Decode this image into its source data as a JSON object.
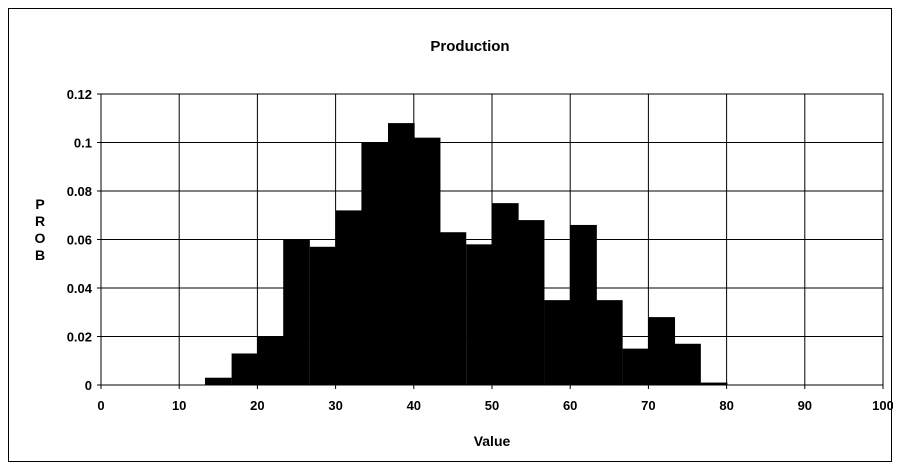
{
  "chart_data": {
    "type": "bar",
    "title": "Production",
    "xlabel": "Value",
    "ylabel": "PROB",
    "xlim": [
      0,
      100
    ],
    "ylim": [
      0,
      0.12
    ],
    "xticks": [
      "0",
      "10",
      "20",
      "30",
      "40",
      "50",
      "60",
      "70",
      "80",
      "90",
      "100"
    ],
    "yticks": [
      "0",
      "0.02",
      "0.04",
      "0.06",
      "0.08",
      "0.1",
      "0.12"
    ],
    "grid": true,
    "bin_width": 3.33,
    "bins": [
      {
        "x0": 13.3,
        "value": 0.003
      },
      {
        "x0": 16.7,
        "value": 0.013
      },
      {
        "x0": 20.0,
        "value": 0.02
      },
      {
        "x0": 23.3,
        "value": 0.06
      },
      {
        "x0": 26.7,
        "value": 0.057
      },
      {
        "x0": 30.0,
        "value": 0.072
      },
      {
        "x0": 33.3,
        "value": 0.1
      },
      {
        "x0": 36.7,
        "value": 0.108
      },
      {
        "x0": 40.0,
        "value": 0.102
      },
      {
        "x0": 43.3,
        "value": 0.063
      },
      {
        "x0": 46.7,
        "value": 0.058
      },
      {
        "x0": 50.0,
        "value": 0.075
      },
      {
        "x0": 53.3,
        "value": 0.068
      },
      {
        "x0": 56.7,
        "value": 0.035
      },
      {
        "x0": 60.0,
        "value": 0.066
      },
      {
        "x0": 63.3,
        "value": 0.035
      },
      {
        "x0": 66.7,
        "value": 0.015
      },
      {
        "x0": 70.0,
        "value": 0.028
      },
      {
        "x0": 73.3,
        "value": 0.017
      },
      {
        "x0": 76.7,
        "value": 0.001
      }
    ],
    "colors": {
      "bar": "#000000",
      "grid": "#000000",
      "background": "#ffffff"
    }
  }
}
